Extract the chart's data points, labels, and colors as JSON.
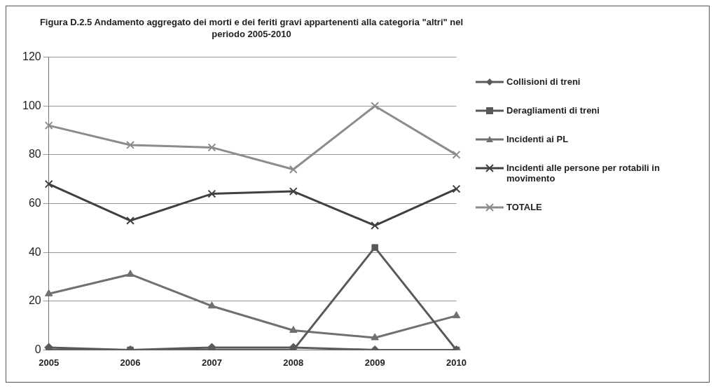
{
  "chart_data": {
    "type": "line",
    "title": "Figura D.2.5 Andamento aggregato dei morti e dei feriti  gravi appartenenti alla categoria \"altri\" nel periodo 2005-2010",
    "categories": [
      "2005",
      "2006",
      "2007",
      "2008",
      "2009",
      "2010"
    ],
    "series": [
      {
        "name": "Collisioni di treni",
        "color": "#5a5a5a",
        "marker": "diamond",
        "values": [
          1,
          0,
          1,
          1,
          0,
          0
        ]
      },
      {
        "name": "Deragliamenti di treni",
        "color": "#595959",
        "marker": "square",
        "values": [
          0,
          0,
          0,
          0,
          42,
          0
        ]
      },
      {
        "name": "Incidenti ai PL",
        "color": "#707070",
        "marker": "triangle",
        "values": [
          23,
          31,
          18,
          8,
          5,
          14
        ]
      },
      {
        "name": "Incidenti alle persone per rotabili in movimento",
        "color": "#404040",
        "marker": "cross",
        "values": [
          68,
          53,
          64,
          65,
          51,
          66
        ]
      },
      {
        "name": "TOTALE",
        "color": "#8c8c8c",
        "marker": "cross",
        "values": [
          92,
          84,
          83,
          74,
          100,
          80
        ]
      }
    ],
    "ylim": [
      0,
      120
    ],
    "yticks": [
      0,
      20,
      40,
      60,
      80,
      100,
      120
    ],
    "grid": "y",
    "legend": "right",
    "line_style": "solid"
  }
}
